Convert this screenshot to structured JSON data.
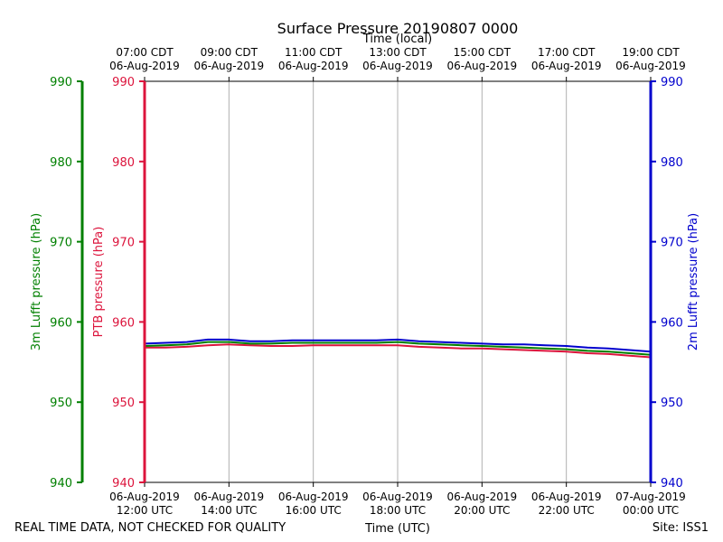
{
  "chart_data": {
    "type": "line",
    "title": "Surface Pressure 20190807 0000",
    "top_axis_title": "Time (local)",
    "bottom_axis_title": "Time (UTC)",
    "footer_left": "REAL TIME DATA, NOT CHECKED FOR QUALITY",
    "footer_right": "Site: ISS1",
    "x_range_hours_utc": [
      12,
      24
    ],
    "grid": "vertical",
    "x_ticks_hours_utc": [
      12,
      14,
      16,
      18,
      20,
      22,
      24
    ],
    "bottom_tick_labels": [
      [
        "06-Aug-2019",
        "12:00 UTC"
      ],
      [
        "06-Aug-2019",
        "14:00 UTC"
      ],
      [
        "06-Aug-2019",
        "16:00 UTC"
      ],
      [
        "06-Aug-2019",
        "18:00 UTC"
      ],
      [
        "06-Aug-2019",
        "20:00 UTC"
      ],
      [
        "06-Aug-2019",
        "22:00 UTC"
      ],
      [
        "07-Aug-2019",
        "00:00 UTC"
      ]
    ],
    "top_tick_labels": [
      [
        "07:00 CDT",
        "06-Aug-2019"
      ],
      [
        "09:00 CDT",
        "06-Aug-2019"
      ],
      [
        "11:00 CDT",
        "06-Aug-2019"
      ],
      [
        "13:00 CDT",
        "06-Aug-2019"
      ],
      [
        "15:00 CDT",
        "06-Aug-2019"
      ],
      [
        "17:00 CDT",
        "06-Aug-2019"
      ],
      [
        "19:00 CDT",
        "06-Aug-2019"
      ]
    ],
    "y_axes": [
      {
        "name": "ptb",
        "label": "PTB pressure (hPa)",
        "color": "#dc143c",
        "ylim": [
          940,
          990
        ],
        "ticks": [
          940,
          950,
          960,
          970,
          980,
          990
        ]
      },
      {
        "name": "lufft3m",
        "label": "3m Lufft pressure (hPa)",
        "color": "#008000",
        "ylim": [
          940,
          990
        ],
        "ticks": [
          940,
          950,
          960,
          970,
          980,
          990
        ]
      },
      {
        "name": "lufft2m",
        "label": "2m Lufft pressure (hPa)",
        "color": "#0000cd",
        "ylim": [
          940,
          990
        ],
        "ticks": [
          940,
          950,
          960,
          970,
          980,
          990
        ]
      }
    ],
    "series": [
      {
        "name": "PTB pressure",
        "color": "#dc143c",
        "x": [
          12,
          12.5,
          13,
          13.5,
          14,
          14.5,
          15,
          15.5,
          16,
          16.5,
          17,
          17.5,
          18,
          18.5,
          19,
          19.5,
          20,
          20.5,
          21,
          21.5,
          22,
          22.5,
          23,
          23.5,
          24
        ],
        "values": [
          956.8,
          956.8,
          956.9,
          957.1,
          957.2,
          957.1,
          957.0,
          957.0,
          957.1,
          957.1,
          957.1,
          957.1,
          957.1,
          956.9,
          956.8,
          956.7,
          956.7,
          956.6,
          956.5,
          956.4,
          956.3,
          956.1,
          956.0,
          955.8,
          955.6
        ]
      },
      {
        "name": "3m Lufft pressure",
        "color": "#008000",
        "x": [
          12,
          12.5,
          13,
          13.5,
          14,
          14.5,
          15,
          15.5,
          16,
          16.5,
          17,
          17.5,
          18,
          18.5,
          19,
          19.5,
          20,
          20.5,
          21,
          21.5,
          22,
          22.5,
          23,
          23.5,
          24
        ],
        "values": [
          957.0,
          957.1,
          957.2,
          957.5,
          957.5,
          957.3,
          957.3,
          957.4,
          957.4,
          957.4,
          957.4,
          957.4,
          957.5,
          957.3,
          957.2,
          957.1,
          957.0,
          956.9,
          956.8,
          956.7,
          956.6,
          956.4,
          956.3,
          956.1,
          955.9
        ]
      },
      {
        "name": "2m Lufft pressure",
        "color": "#0000cd",
        "x": [
          12,
          12.5,
          13,
          13.5,
          14,
          14.5,
          15,
          15.5,
          16,
          16.5,
          17,
          17.5,
          18,
          18.5,
          19,
          19.5,
          20,
          20.5,
          21,
          21.5,
          22,
          22.5,
          23,
          23.5,
          24
        ],
        "values": [
          957.3,
          957.4,
          957.5,
          957.8,
          957.8,
          957.6,
          957.6,
          957.7,
          957.7,
          957.7,
          957.7,
          957.7,
          957.8,
          957.6,
          957.5,
          957.4,
          957.3,
          957.2,
          957.2,
          957.1,
          957.0,
          956.8,
          956.7,
          956.5,
          956.3
        ]
      }
    ]
  }
}
